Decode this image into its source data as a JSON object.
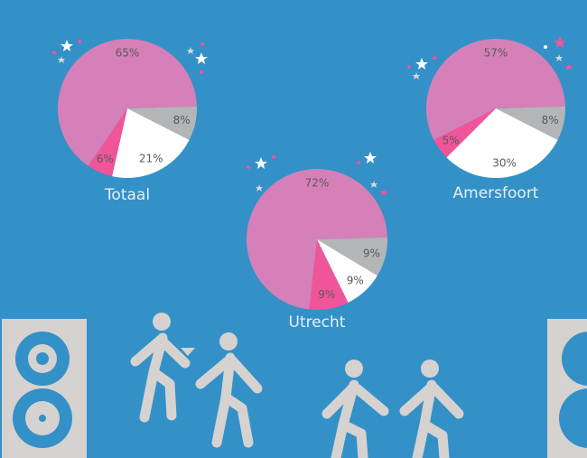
{
  "chart_data": [
    {
      "type": "pie",
      "title": "Totaal",
      "values": [
        8,
        21,
        6,
        65
      ],
      "value_labels": [
        "8%",
        "21%",
        "6%",
        "65%"
      ],
      "colors": [
        "#b3b5b7",
        "#ffffff",
        "#f0559a",
        "#d580b8"
      ]
    },
    {
      "type": "pie",
      "title": "Utrecht",
      "values": [
        9,
        9,
        9,
        72
      ],
      "value_labels": [
        "9%",
        "9%",
        "9%",
        "72%"
      ],
      "colors": [
        "#b3b5b7",
        "#ffffff",
        "#f0559a",
        "#d580b8"
      ]
    },
    {
      "type": "pie",
      "title": "Amersfoort",
      "values": [
        8,
        30,
        5,
        57
      ],
      "value_labels": [
        "8%",
        "30%",
        "5%",
        "57%"
      ],
      "colors": [
        "#b3b5b7",
        "#ffffff",
        "#f0559a",
        "#d580b8"
      ]
    }
  ]
}
